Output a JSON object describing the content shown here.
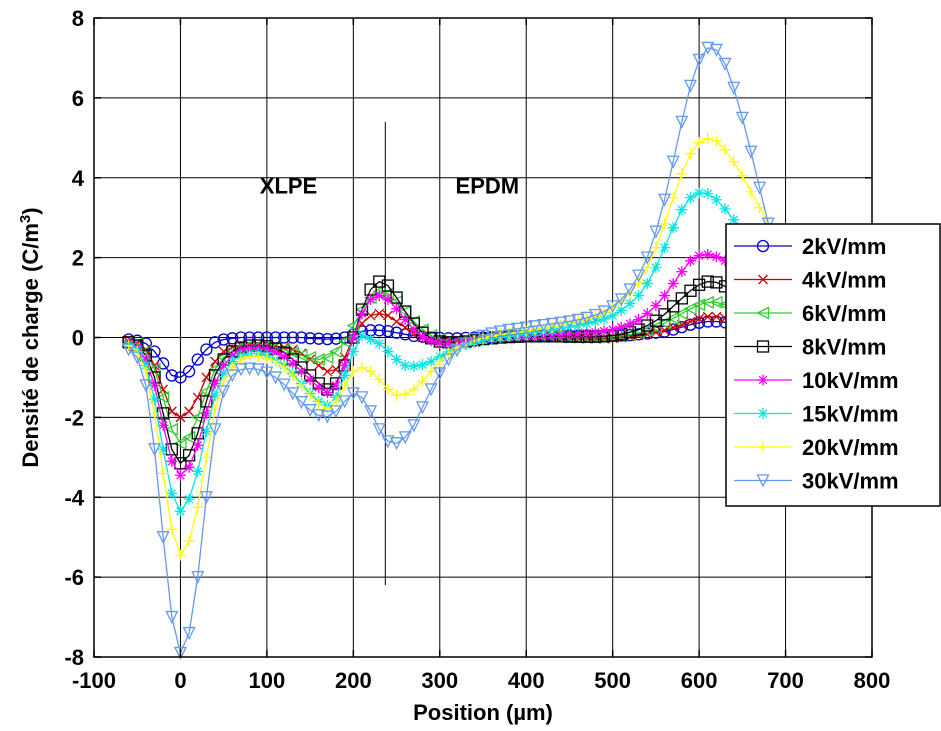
{
  "chart_data": {
    "type": "line",
    "title": "",
    "xlabel": "Position (µm)",
    "ylabel": "Densité de charge (C/m",
    "ylabel_sup": "3",
    "ylabel_end": ")",
    "xlim": [
      -100,
      800
    ],
    "ylim": [
      -8,
      8
    ],
    "xticks": [
      -100,
      0,
      100,
      200,
      300,
      400,
      500,
      600,
      700,
      800
    ],
    "yticks": [
      -8,
      -6,
      -4,
      -2,
      0,
      2,
      4,
      6,
      8
    ],
    "grid": true,
    "legend_position": "right",
    "annotations": [
      {
        "text": "XLPE",
        "x": 125,
        "y": 3.6
      },
      {
        "text": "EPDM",
        "x": 355,
        "y": 3.6
      }
    ],
    "interface_line": {
      "x": 237,
      "y": [
        -6.2,
        5.4
      ]
    },
    "x": [
      -60,
      -50,
      -40,
      -30,
      -20,
      -10,
      0,
      10,
      20,
      30,
      40,
      50,
      60,
      70,
      80,
      90,
      100,
      110,
      120,
      130,
      140,
      150,
      160,
      170,
      180,
      190,
      200,
      210,
      220,
      230,
      240,
      250,
      260,
      270,
      280,
      290,
      300,
      310,
      320,
      330,
      340,
      350,
      360,
      370,
      380,
      390,
      400,
      410,
      420,
      430,
      440,
      450,
      460,
      470,
      480,
      490,
      500,
      510,
      520,
      530,
      540,
      550,
      560,
      570,
      580,
      590,
      600,
      610,
      620,
      630,
      640,
      650,
      660,
      670,
      680,
      690
    ],
    "series": [
      {
        "name": "2kV/mm",
        "color": "#0000cc",
        "marker": "circle",
        "values": [
          -0.05,
          -0.08,
          -0.15,
          -0.35,
          -0.65,
          -0.95,
          -1.0,
          -0.85,
          -0.55,
          -0.3,
          -0.12,
          -0.05,
          -0.02,
          0,
          0,
          0,
          0,
          0,
          0,
          0,
          0,
          -0.02,
          -0.03,
          -0.04,
          -0.03,
          0,
          0.08,
          0.15,
          0.18,
          0.18,
          0.16,
          0.12,
          0.08,
          0.04,
          0.02,
          0,
          -0.01,
          -0.02,
          -0.02,
          -0.01,
          0,
          0,
          0.01,
          0.02,
          0.03,
          0.04,
          0.05,
          0.05,
          0.06,
          0.06,
          0.06,
          0.05,
          0.05,
          0.05,
          0.04,
          0.04,
          0.04,
          0.05,
          0.06,
          0.08,
          0.1,
          0.12,
          0.15,
          0.2,
          0.26,
          0.32,
          0.37,
          0.4,
          0.4,
          0.38,
          0.33,
          0.28,
          0.22,
          0.17,
          0.12,
          0.08
        ]
      },
      {
        "name": "4kV/mm",
        "color": "#cc0000",
        "marker": "x",
        "values": [
          -0.1,
          -0.15,
          -0.3,
          -0.7,
          -1.3,
          -1.85,
          -2.0,
          -1.85,
          -1.5,
          -1.0,
          -0.6,
          -0.35,
          -0.25,
          -0.2,
          -0.2,
          -0.2,
          -0.2,
          -0.22,
          -0.25,
          -0.3,
          -0.4,
          -0.55,
          -0.7,
          -0.85,
          -0.8,
          -0.5,
          0,
          0.35,
          0.55,
          0.6,
          0.55,
          0.4,
          0.25,
          0.1,
          0,
          -0.05,
          -0.08,
          -0.08,
          -0.06,
          -0.04,
          -0.02,
          0,
          0.01,
          0.02,
          0.02,
          0.03,
          0.03,
          0.02,
          0.02,
          0.01,
          0,
          -0.01,
          -0.02,
          -0.03,
          -0.03,
          -0.03,
          -0.02,
          0,
          0.02,
          0.05,
          0.08,
          0.13,
          0.18,
          0.25,
          0.32,
          0.4,
          0.47,
          0.52,
          0.52,
          0.48,
          0.42,
          0.34,
          0.26,
          0.18,
          0.12,
          0.07
        ]
      },
      {
        "name": "6kV/mm",
        "color": "#33cc33",
        "marker": "triangle-left",
        "values": [
          -0.1,
          -0.15,
          -0.35,
          -0.8,
          -1.5,
          -2.3,
          -2.65,
          -2.5,
          -2.0,
          -1.35,
          -0.8,
          -0.5,
          -0.35,
          -0.25,
          -0.2,
          -0.2,
          -0.22,
          -0.25,
          -0.3,
          -0.38,
          -0.45,
          -0.5,
          -0.55,
          -0.5,
          -0.35,
          -0.1,
          0.3,
          0.7,
          1.0,
          1.15,
          1.1,
          0.9,
          0.65,
          0.4,
          0.2,
          0.05,
          -0.05,
          -0.1,
          -0.1,
          -0.08,
          -0.05,
          -0.03,
          -0.01,
          0,
          0.01,
          0.02,
          0.02,
          0.02,
          0.02,
          0.02,
          0.01,
          0.01,
          0,
          0,
          0,
          0.01,
          0.02,
          0.04,
          0.07,
          0.12,
          0.18,
          0.26,
          0.36,
          0.48,
          0.6,
          0.72,
          0.82,
          0.88,
          0.88,
          0.82,
          0.72,
          0.6,
          0.46,
          0.32,
          0.2,
          0.12
        ]
      },
      {
        "name": "8kV/mm",
        "color": "#000000",
        "marker": "square",
        "values": [
          -0.12,
          -0.2,
          -0.45,
          -1.0,
          -1.9,
          -2.8,
          -3.15,
          -2.95,
          -2.4,
          -1.6,
          -0.95,
          -0.55,
          -0.35,
          -0.25,
          -0.2,
          -0.2,
          -0.22,
          -0.28,
          -0.38,
          -0.55,
          -0.75,
          -0.95,
          -1.15,
          -1.3,
          -1.15,
          -0.7,
          0,
          0.7,
          1.2,
          1.4,
          1.3,
          1.0,
          0.65,
          0.35,
          0.12,
          -0.02,
          -0.1,
          -0.12,
          -0.12,
          -0.1,
          -0.07,
          -0.04,
          -0.02,
          0,
          0.01,
          0.02,
          0.03,
          0.03,
          0.03,
          0.03,
          0.03,
          0.02,
          0.02,
          0.02,
          0.02,
          0.03,
          0.05,
          0.08,
          0.13,
          0.2,
          0.3,
          0.42,
          0.58,
          0.78,
          0.98,
          1.17,
          1.32,
          1.4,
          1.38,
          1.28,
          1.1,
          0.9,
          0.68,
          0.47,
          0.3,
          0.18
        ]
      },
      {
        "name": "10kV/mm",
        "color": "#ff00ff",
        "marker": "star",
        "values": [
          -0.15,
          -0.25,
          -0.55,
          -1.2,
          -2.2,
          -3.1,
          -3.45,
          -3.25,
          -2.7,
          -1.9,
          -1.15,
          -0.7,
          -0.45,
          -0.32,
          -0.27,
          -0.27,
          -0.3,
          -0.37,
          -0.48,
          -0.65,
          -0.85,
          -1.05,
          -1.25,
          -1.38,
          -1.2,
          -0.7,
          0,
          0.6,
          0.95,
          1.05,
          0.95,
          0.72,
          0.45,
          0.2,
          0.02,
          -0.08,
          -0.14,
          -0.16,
          -0.15,
          -0.12,
          -0.08,
          -0.05,
          -0.02,
          0,
          0.02,
          0.03,
          0.04,
          0.05,
          0.06,
          0.07,
          0.08,
          0.09,
          0.1,
          0.11,
          0.13,
          0.16,
          0.2,
          0.26,
          0.34,
          0.45,
          0.6,
          0.8,
          1.05,
          1.35,
          1.65,
          1.92,
          2.05,
          2.08,
          2.02,
          1.92,
          1.78,
          1.6,
          1.38,
          1.1,
          0.8,
          0.55
        ]
      },
      {
        "name": "15kV/mm",
        "color": "#00e5e5",
        "marker": "star",
        "values": [
          -0.18,
          -0.3,
          -0.7,
          -1.55,
          -2.8,
          -3.9,
          -4.35,
          -4.05,
          -3.35,
          -2.35,
          -1.45,
          -0.9,
          -0.6,
          -0.45,
          -0.4,
          -0.4,
          -0.45,
          -0.55,
          -0.7,
          -0.9,
          -1.15,
          -1.4,
          -1.6,
          -1.7,
          -1.5,
          -0.95,
          -0.35,
          0.05,
          -0.05,
          -0.15,
          -0.35,
          -0.55,
          -0.7,
          -0.72,
          -0.68,
          -0.6,
          -0.48,
          -0.36,
          -0.26,
          -0.18,
          -0.12,
          -0.07,
          -0.03,
          0,
          0.03,
          0.06,
          0.09,
          0.12,
          0.15,
          0.18,
          0.22,
          0.26,
          0.3,
          0.35,
          0.4,
          0.46,
          0.55,
          0.68,
          0.85,
          1.05,
          1.35,
          1.75,
          2.25,
          2.75,
          3.2,
          3.5,
          3.62,
          3.6,
          3.45,
          3.22,
          2.95,
          2.65,
          2.3,
          1.95,
          1.6,
          1.25
        ]
      },
      {
        "name": "20kV/mm",
        "color": "#ffff00",
        "marker": "plus",
        "values": [
          -0.2,
          -0.35,
          -0.85,
          -1.9,
          -3.4,
          -4.8,
          -5.45,
          -5.1,
          -4.25,
          -3.0,
          -1.8,
          -1.1,
          -0.75,
          -0.55,
          -0.48,
          -0.48,
          -0.52,
          -0.6,
          -0.75,
          -0.95,
          -1.2,
          -1.45,
          -1.65,
          -1.78,
          -1.6,
          -1.2,
          -0.85,
          -0.75,
          -0.85,
          -1.05,
          -1.3,
          -1.45,
          -1.42,
          -1.3,
          -1.1,
          -0.85,
          -0.6,
          -0.4,
          -0.26,
          -0.16,
          -0.08,
          -0.02,
          0.03,
          0.07,
          0.1,
          0.13,
          0.16,
          0.19,
          0.22,
          0.26,
          0.3,
          0.35,
          0.4,
          0.46,
          0.53,
          0.62,
          0.74,
          0.9,
          1.1,
          1.38,
          1.75,
          2.25,
          2.85,
          3.5,
          4.1,
          4.6,
          4.88,
          4.98,
          4.92,
          4.7,
          4.4,
          4.05,
          3.65,
          3.25,
          2.85,
          2.45
        ]
      },
      {
        "name": "30kV/mm",
        "color": "#6699ee",
        "marker": "triangle-down",
        "values": [
          -0.3,
          -0.5,
          -1.2,
          -2.8,
          -5.0,
          -7.0,
          -7.9,
          -7.4,
          -6.0,
          -4.0,
          -2.3,
          -1.35,
          -0.95,
          -0.8,
          -0.78,
          -0.8,
          -0.88,
          -1.0,
          -1.18,
          -1.4,
          -1.62,
          -1.82,
          -1.95,
          -1.98,
          -1.85,
          -1.6,
          -1.4,
          -1.5,
          -1.85,
          -2.3,
          -2.6,
          -2.65,
          -2.5,
          -2.2,
          -1.75,
          -1.3,
          -0.9,
          -0.55,
          -0.32,
          -0.15,
          -0.04,
          0.04,
          0.1,
          0.15,
          0.19,
          0.22,
          0.25,
          0.28,
          0.31,
          0.34,
          0.37,
          0.4,
          0.44,
          0.49,
          0.56,
          0.65,
          0.78,
          0.95,
          1.2,
          1.55,
          2.0,
          2.65,
          3.45,
          4.4,
          5.4,
          6.3,
          6.95,
          7.25,
          7.2,
          6.85,
          6.25,
          5.5,
          4.65,
          3.75,
          2.85,
          2.0
        ]
      }
    ]
  }
}
